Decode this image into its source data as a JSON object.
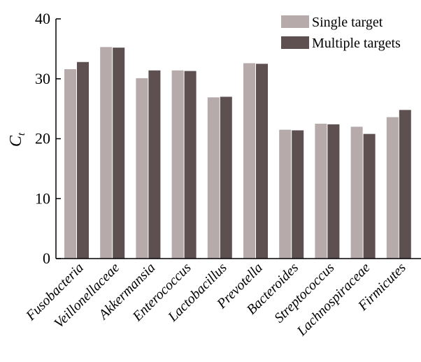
{
  "chart_data": {
    "type": "bar",
    "categories": [
      "Fusobacteria",
      "Veillonellaceae",
      "Akkermansia",
      "Enterococcus",
      "Lactobacillus",
      "Prevotella",
      "Bacteroides",
      "Streptococcus",
      "Lachnospiraceae",
      "Firmicutes"
    ],
    "series": [
      {
        "name": "Single target",
        "color": "#b6aaaa",
        "values": [
          31.6,
          35.3,
          30.1,
          31.4,
          26.9,
          32.6,
          21.5,
          22.5,
          22.0,
          23.6
        ]
      },
      {
        "name": "Multiple targets",
        "color": "#5e5050",
        "values": [
          32.8,
          35.2,
          31.4,
          31.3,
          27.0,
          32.5,
          21.4,
          22.4,
          20.8,
          24.8
        ]
      }
    ],
    "title": "",
    "xlabel": "",
    "ylabel": "C",
    "ylabel_subscript": "t",
    "ylim": [
      0,
      40
    ],
    "yticks": [
      0,
      10,
      20,
      30,
      40
    ],
    "grid": false,
    "legend_position": "top-right"
  }
}
